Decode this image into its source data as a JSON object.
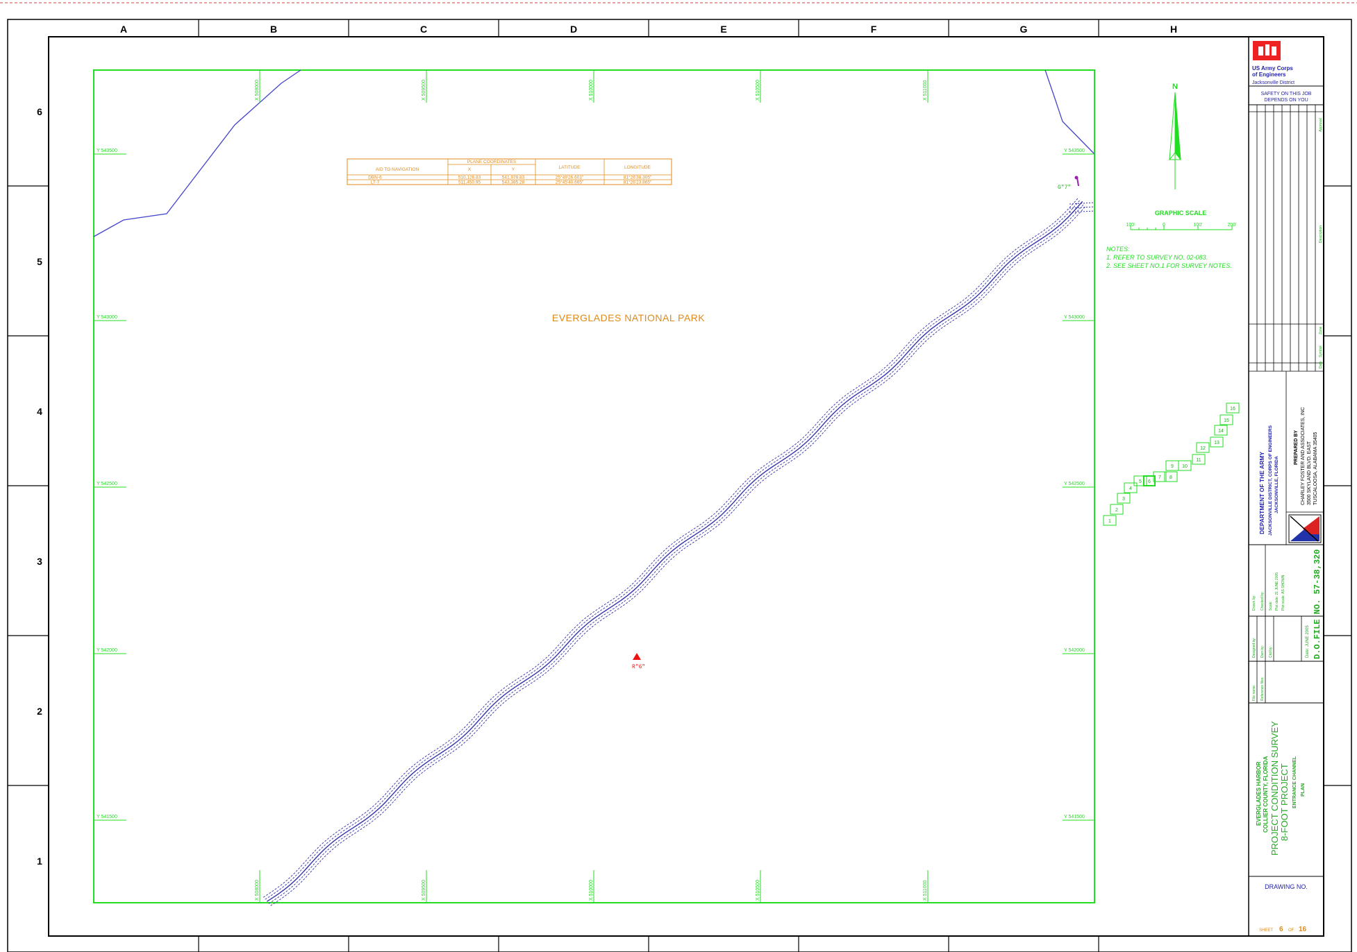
{
  "border": {
    "columns": [
      "A",
      "B",
      "C",
      "D",
      "E",
      "F",
      "G",
      "H"
    ],
    "rows": [
      "6",
      "5",
      "4",
      "3",
      "2",
      "1"
    ]
  },
  "map": {
    "park_label": "EVERGLADES NATIONAL PARK",
    "top_x_ticks": [
      "X 508000",
      "X 509500",
      "X 510000",
      "X 510500",
      "X 511000"
    ],
    "bottom_x_ticks": [
      "X 508000",
      "X 509500",
      "X 510000",
      "X 510500",
      "X 511000"
    ],
    "left_y_ticks": [
      "Y 543500",
      "Y 543000",
      "Y 542500",
      "Y 542000",
      "Y 541500"
    ],
    "right_y_ticks": [
      "Y 543500",
      "Y 543000",
      "Y 542500",
      "Y 542000",
      "Y 541500"
    ],
    "marker_red_label": "R\"6\"",
    "marker_purple_label": "G\"7\"",
    "colors": {
      "frame": "#22dd22",
      "channel": "#3333aa",
      "coast": "#4444cc",
      "orange": "#e08a1a",
      "red": "#ee1111"
    }
  },
  "nav_table": {
    "header_aid": "AID TO NAVIGATION",
    "header_plane": "PLANE COORDINATES",
    "header_x": "X",
    "header_y": "Y",
    "header_lat": "LATITUDE",
    "header_lon": "LONGITUDE",
    "rows": [
      {
        "aid": "DBN-6",
        "x": "510,126.83",
        "y": "541,978.83",
        "lat": "25°49'26.601\"",
        "lon": "81°26'38.305\""
      },
      {
        "aid": "LT-7",
        "x": "511,450.95",
        "y": "543,385.28",
        "lat": "25°45'40.665\"",
        "lon": "81°26'23.865\""
      }
    ]
  },
  "north": {
    "label": "N"
  },
  "scale": {
    "title": "GRAPHIC SCALE",
    "ticks": [
      "100'",
      "0",
      "100'",
      "200'"
    ]
  },
  "notes": {
    "title": "NOTES:",
    "lines": [
      "1. REFER TO SURVEY NO. 02-083.",
      "2. SEE SHEET NO.1 FOR SURVEY NOTES."
    ]
  },
  "sheet_index": [
    "1",
    "2",
    "3",
    "4",
    "5",
    "6",
    "7",
    "8",
    "9",
    "10",
    "11",
    "12",
    "13",
    "14",
    "15",
    "16"
  ],
  "title_block": {
    "agency_line1": "US Army Corps",
    "agency_line2": "of Engineers",
    "agency_line3": "Jacksonville District",
    "safety_line1": "SAFETY ON THIS JOB",
    "safety_line2": "DEPENDS ON YOU",
    "rev_approved": "Approval",
    "rev_description": "Description",
    "rev_date": "Date",
    "rev_symbol": "Symbol",
    "rev_zone": "Zone",
    "dept_line1": "DEPARTMENT OF THE ARMY",
    "dept_line2": "JACKSONVILLE DISTRICT, CORPS OF ENGINEERS",
    "dept_line3": "JACKSONVILLE, FLORIDA",
    "prepared_by": "PREPARED BY",
    "firm_line1": "CHARLEY FOSTER AND ASSOCIATES, INC",
    "firm_line2": "3500 SKYLAND BLVD. EAST",
    "firm_line3": "TUSCALOOSA, ALABAMA 35405",
    "info_lines": [
      "Drawn by:",
      "Checked by:",
      "Scale:",
      "Plot date: 21 JUNE 2005",
      "Plot scale: AS SHOWN"
    ],
    "file_no": "D.O.FILE NO. 57-38,320",
    "date_label": "Date: JUNE 2005",
    "designed_by": "Designed by:",
    "drawn_by": "Dwn by:",
    "ckd_by": "Ckd by:",
    "file_name": "File name:",
    "ref_files": "Reference files:",
    "project_line1": "EVERGLADES HARBOR",
    "project_line2": "COLLIER COUNTY, FLORIDA",
    "project_line3": "PROJECT CONDITION SURVEY",
    "project_line4": "8-FOOT PROJECT",
    "project_line5": "ENTRANCE CHANNEL",
    "project_line6": "PLAN",
    "drawing_no": "DRAWING NO.",
    "sheet_label": "SHEET",
    "sheet_num": "6",
    "sheet_of": "OF",
    "sheet_total": "16"
  }
}
